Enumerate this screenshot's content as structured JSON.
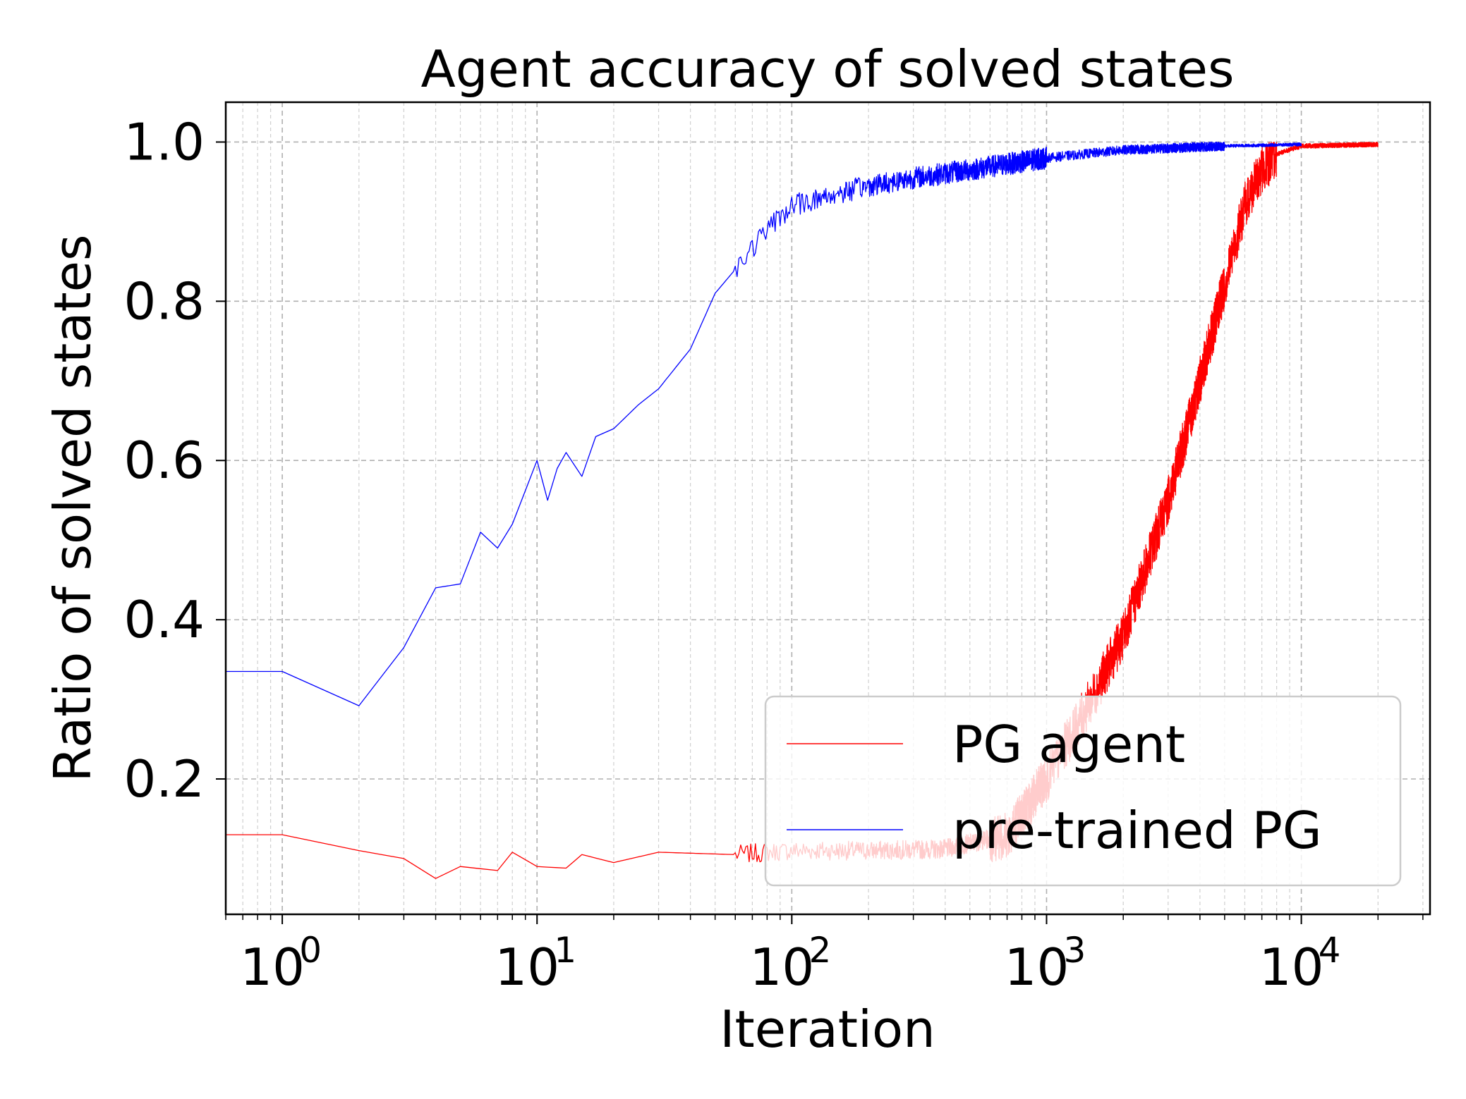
{
  "chart_data": {
    "type": "line",
    "title": "Agent accuracy of solved states",
    "xlabel": "Iteration",
    "ylabel": "Ratio of solved states",
    "xscale": "log",
    "xlim": [
      0.6,
      32000
    ],
    "ylim": [
      0.03,
      1.05
    ],
    "grid": true,
    "legend_position": "lower right",
    "x_ticks": [
      {
        "base": "10",
        "exp": "0",
        "value": 1
      },
      {
        "base": "10",
        "exp": "1",
        "value": 10
      },
      {
        "base": "10",
        "exp": "2",
        "value": 100
      },
      {
        "base": "10",
        "exp": "3",
        "value": 1000
      },
      {
        "base": "10",
        "exp": "4",
        "value": 10000
      }
    ],
    "y_ticks": [
      {
        "label": "0.2",
        "value": 0.2
      },
      {
        "label": "0.4",
        "value": 0.4
      },
      {
        "label": "0.6",
        "value": 0.6
      },
      {
        "label": "0.8",
        "value": 0.8
      },
      {
        "label": "1.0",
        "value": 1.0
      }
    ],
    "series": [
      {
        "name": "PG agent",
        "color": "#ff0000",
        "x_max": 20000,
        "points": [
          [
            0,
            0.13
          ],
          [
            1,
            0.13
          ],
          [
            2,
            0.11
          ],
          [
            3,
            0.1
          ],
          [
            4,
            0.075
          ],
          [
            5,
            0.09
          ],
          [
            7,
            0.085
          ],
          [
            8,
            0.108
          ],
          [
            10,
            0.09
          ],
          [
            13,
            0.088
          ],
          [
            15,
            0.105
          ],
          [
            20,
            0.095
          ],
          [
            30,
            0.108
          ],
          [
            60,
            0.105
          ],
          [
            100,
            0.11
          ],
          [
            200,
            0.11
          ],
          [
            400,
            0.112
          ],
          [
            700,
            0.13
          ],
          [
            1000,
            0.2
          ],
          [
            1500,
            0.3
          ],
          [
            2000,
            0.38
          ],
          [
            3000,
            0.55
          ],
          [
            4000,
            0.7
          ],
          [
            5000,
            0.82
          ],
          [
            6000,
            0.92
          ],
          [
            7000,
            0.965
          ],
          [
            8000,
            0.985
          ],
          [
            10000,
            0.995
          ],
          [
            20000,
            0.997
          ]
        ]
      },
      {
        "name": "pre-trained PG",
        "color": "#0000ff",
        "x_max": 10000,
        "points": [
          [
            0,
            0.335
          ],
          [
            1,
            0.335
          ],
          [
            2,
            0.292
          ],
          [
            3,
            0.365
          ],
          [
            4,
            0.44
          ],
          [
            5,
            0.445
          ],
          [
            6,
            0.51
          ],
          [
            7,
            0.49
          ],
          [
            8,
            0.52
          ],
          [
            10,
            0.6
          ],
          [
            11,
            0.55
          ],
          [
            12,
            0.59
          ],
          [
            13,
            0.61
          ],
          [
            15,
            0.58
          ],
          [
            17,
            0.63
          ],
          [
            20,
            0.64
          ],
          [
            25,
            0.67
          ],
          [
            30,
            0.69
          ],
          [
            40,
            0.74
          ],
          [
            50,
            0.81
          ],
          [
            60,
            0.84
          ],
          [
            80,
            0.89
          ],
          [
            100,
            0.92
          ],
          [
            150,
            0.935
          ],
          [
            200,
            0.945
          ],
          [
            300,
            0.955
          ],
          [
            500,
            0.965
          ],
          [
            1000,
            0.98
          ],
          [
            2000,
            0.99
          ],
          [
            5000,
            0.995
          ],
          [
            10000,
            0.997
          ]
        ]
      }
    ]
  }
}
